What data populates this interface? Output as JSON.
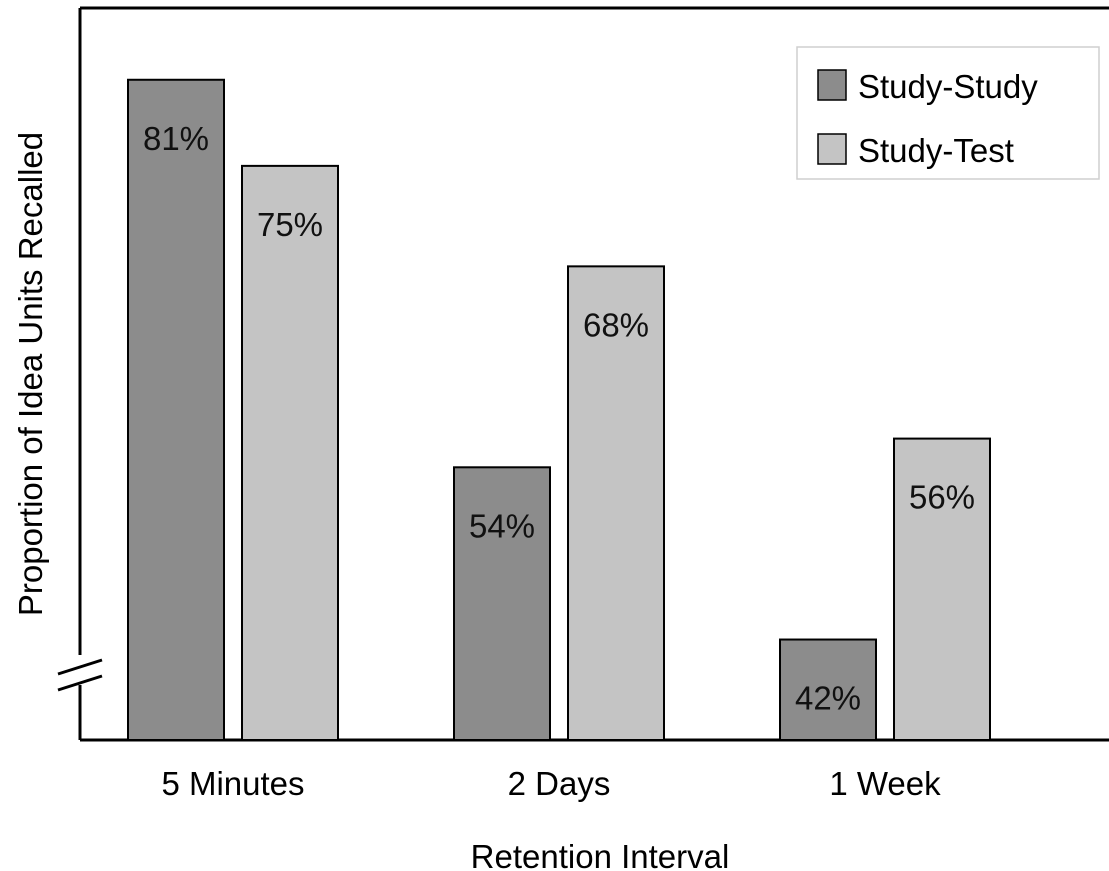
{
  "chart_data": {
    "type": "bar",
    "xlabel": "Retention Interval",
    "ylabel": "Proportion of Idea Units Recalled",
    "categories": [
      "5 Minutes",
      "2 Days",
      "1 Week"
    ],
    "series": [
      {
        "name": "Study-Study",
        "values": [
          81,
          54,
          42
        ],
        "labels": [
          "81%",
          "54%",
          "42%"
        ],
        "color": "#8c8c8c"
      },
      {
        "name": "Study-Test",
        "values": [
          75,
          68,
          56
        ],
        "labels": [
          "75%",
          "68%",
          "56%"
        ],
        "color": "#c4c4c4"
      }
    ],
    "ylim": [
      35,
      86
    ],
    "y_axis_broken": true,
    "y_tick_labels": false,
    "grid": false,
    "legend": "top-right"
  }
}
